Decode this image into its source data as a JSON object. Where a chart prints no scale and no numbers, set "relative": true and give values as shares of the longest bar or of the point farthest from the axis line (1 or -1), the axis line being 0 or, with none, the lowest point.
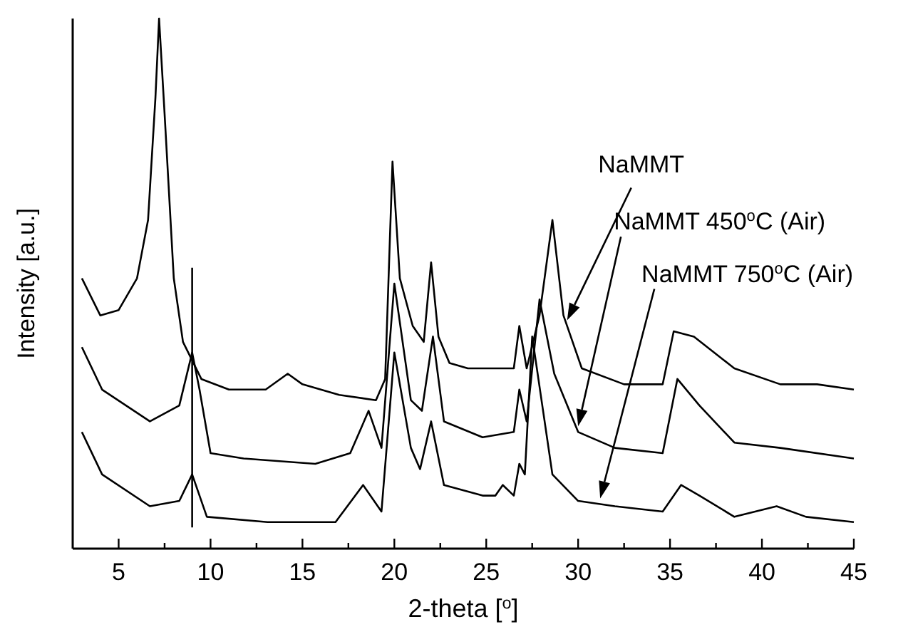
{
  "chart_data": {
    "type": "line",
    "relative": true,
    "xlabel": "2-theta [$^{o}$]",
    "ylabel": "Intensity [a.u.]",
    "xlim": [
      2.5,
      45
    ],
    "xticks": [
      5,
      {
        "value": 7.5,
        "label": null
      },
      10,
      {
        "value": 12.5,
        "label": null
      },
      15,
      {
        "value": 17.5,
        "label": null
      },
      20,
      {
        "value": 22.5,
        "label": null
      },
      25,
      {
        "value": 27.5,
        "label": null
      },
      30,
      {
        "value": 32.5,
        "label": null
      },
      35,
      {
        "value": 37.5,
        "label": null
      },
      40,
      {
        "value": 42.5,
        "label": null
      },
      45
    ],
    "grid": false,
    "line_style": "solid",
    "series": [
      {
        "name": "NaMMT",
        "color": "#000000",
        "x": [
          3,
          4,
          5,
          6,
          6.6,
          7.0,
          7.2,
          7.5,
          8.0,
          8.5,
          9.5,
          11,
          13,
          14.2,
          15,
          17,
          19,
          19.5,
          19.9,
          20.3,
          21,
          21.6,
          22.0,
          22.4,
          23,
          24,
          26.5,
          26.8,
          27.2,
          27.9,
          28.6,
          29.2,
          30.2,
          32.5,
          34.6,
          35.2,
          36.3,
          38.5,
          41,
          43,
          45
        ],
        "values": [
          0.51,
          0.44,
          0.45,
          0.51,
          0.62,
          0.85,
          1.0,
          0.82,
          0.51,
          0.39,
          0.32,
          0.3,
          0.3,
          0.33,
          0.31,
          0.29,
          0.28,
          0.32,
          0.73,
          0.51,
          0.42,
          0.39,
          0.54,
          0.4,
          0.35,
          0.34,
          0.34,
          0.42,
          0.34,
          0.44,
          0.62,
          0.44,
          0.34,
          0.31,
          0.31,
          0.41,
          0.4,
          0.34,
          0.31,
          0.31,
          0.3
        ]
      },
      {
        "name": "NaMMT 450$^{o}$C (Air)",
        "color": "#000000",
        "x": [
          3,
          4.1,
          6.7,
          8.3,
          9.0,
          9.4,
          10,
          11.8,
          15.7,
          17.6,
          18.6,
          19.3,
          20.0,
          20.9,
          21.5,
          22.1,
          22.7,
          24.8,
          26.5,
          26.8,
          27.2,
          27.9,
          28.7,
          30,
          32,
          34.6,
          35.4,
          36.6,
          38.5,
          41,
          45
        ],
        "values": [
          0.38,
          0.3,
          0.24,
          0.27,
          0.37,
          0.3,
          0.18,
          0.17,
          0.16,
          0.18,
          0.26,
          0.19,
          0.5,
          0.28,
          0.26,
          0.4,
          0.24,
          0.21,
          0.22,
          0.3,
          0.24,
          0.47,
          0.33,
          0.22,
          0.19,
          0.18,
          0.32,
          0.27,
          0.2,
          0.19,
          0.17
        ]
      },
      {
        "name": "NaMMT 750$^{o}$C (Air)",
        "color": "#000000",
        "x": [
          3,
          4.1,
          6.7,
          8.3,
          9.0,
          9.8,
          13.1,
          16.8,
          18.3,
          19.3,
          20.0,
          20.9,
          21.4,
          22.0,
          22.7,
          24.8,
          25.5,
          25.9,
          26.5,
          26.8,
          27.1,
          27.5,
          28.6,
          30,
          32,
          34.6,
          35.6,
          36.6,
          38.5,
          40.8,
          42.4,
          45
        ],
        "values": [
          0.22,
          0.14,
          0.08,
          0.09,
          0.14,
          0.06,
          0.05,
          0.05,
          0.12,
          0.07,
          0.37,
          0.19,
          0.15,
          0.24,
          0.12,
          0.1,
          0.1,
          0.12,
          0.1,
          0.16,
          0.14,
          0.4,
          0.14,
          0.09,
          0.08,
          0.07,
          0.12,
          0.1,
          0.06,
          0.08,
          0.06,
          0.05
        ]
      },
      {
        "color": "#000000",
        "x": [
          9,
          9
        ],
        "values": [
          0.04,
          0.53
        ]
      }
    ]
  }
}
